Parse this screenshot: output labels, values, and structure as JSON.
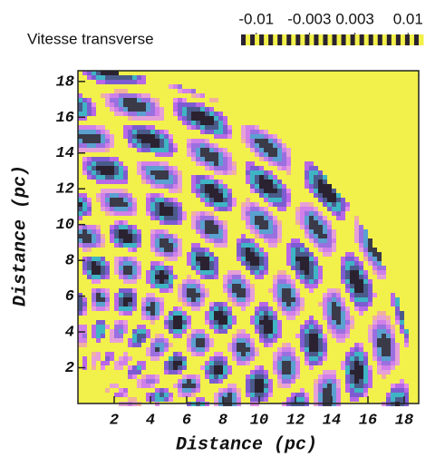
{
  "chart_data": {
    "type": "contour",
    "xlabel": "Distance (pc)",
    "ylabel": "Distance (pc)",
    "xlim": [
      0,
      18.8
    ],
    "ylim": [
      0,
      18.6
    ],
    "xticks": [
      2,
      4,
      6,
      8,
      10,
      12,
      14,
      16,
      18
    ],
    "yticks": [
      2,
      4,
      6,
      8,
      10,
      12,
      14,
      16,
      18
    ],
    "colorbar": {
      "label": "Vitesse transverse",
      "lim": [
        -0.012,
        0.012
      ],
      "ticks": [
        -0.01,
        -0.003,
        0.003,
        0.01
      ]
    },
    "colormap": [
      "#2a2230",
      "#4a5a8a",
      "#3fb4c4",
      "#7c5cd0",
      "#b868e6",
      "#e48ee8",
      "#f2f04a",
      "#f2f04a",
      "#f0b0a0",
      "#e6a0d8",
      "#d080e8",
      "#9a70e0",
      "#5aa0d0",
      "#3a3a48"
    ],
    "background": "#f2f04a"
  }
}
